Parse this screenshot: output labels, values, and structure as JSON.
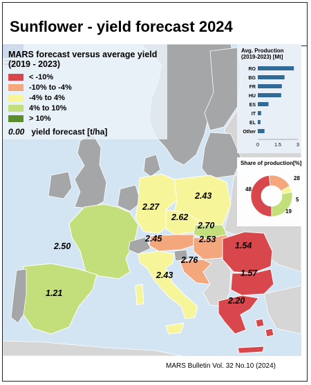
{
  "title": "Sunflower - yield forecast 2024",
  "legend": {
    "title_line1": "MARS forecast versus average yield",
    "title_line2": "(2019 - 2023)",
    "items": [
      {
        "label": "< -10%",
        "color": "#d8474b"
      },
      {
        "label": "-10% to -4%",
        "color": "#f4a67c"
      },
      {
        "label": "-4% to 4%",
        "color": "#f7f59a"
      },
      {
        "label": "4% to 10%",
        "color": "#c3df7b"
      },
      {
        "label": "> 10%",
        "color": "#5b8d2e"
      }
    ],
    "yield_example": "0.00",
    "yield_text": "yield forecast [t/ha]"
  },
  "production_chart": {
    "title_line1": "Avg. Production",
    "title_line2": "(2019-2023) [Mt]",
    "bar_color": "#2f6a99",
    "categories": [
      "RO",
      "BG",
      "FR",
      "HU",
      "ES",
      "IT",
      "EL",
      "Other"
    ],
    "values": [
      2.7,
      2.0,
      1.8,
      1.75,
      0.8,
      0.25,
      0.2,
      0.5
    ],
    "ticks": [
      "0",
      "1.5",
      "3"
    ],
    "xlim": [
      0,
      3
    ]
  },
  "share_chart": {
    "title": "Share of production[%]",
    "slices": [
      {
        "value": 48,
        "color": "#d8474b"
      },
      {
        "value": 19,
        "color": "#f4a67c"
      },
      {
        "value": 5,
        "color": "#f7f59a"
      },
      {
        "value": 28,
        "color": "#c3df7b"
      }
    ],
    "labels": [
      "48",
      "19",
      "5",
      "28"
    ]
  },
  "map": {
    "colors": {
      "water": "#d3e4f2",
      "nondata": "#a4a6a8",
      "outside": "#d6d6d6",
      "border": "#ffffff"
    },
    "countries": [
      {
        "code": "FR",
        "value": "2.50",
        "class": "4% to 10%"
      },
      {
        "code": "ES",
        "value": "1.21",
        "class": "4% to 10%"
      },
      {
        "code": "DE",
        "value": "2.27",
        "class": "-4% to 4%"
      },
      {
        "code": "PL",
        "value": "2.43",
        "class": "-4% to 4%"
      },
      {
        "code": "CZ",
        "value": "2.62",
        "class": "-4% to 4%"
      },
      {
        "code": "SK",
        "value": "2.70",
        "class": "4% to 10%"
      },
      {
        "code": "AT",
        "value": "2.45",
        "class": "-10% to -4%"
      },
      {
        "code": "HU",
        "value": "2.53",
        "class": "-10% to -4%"
      },
      {
        "code": "HR",
        "value": "2.76",
        "class": "-10% to -4%"
      },
      {
        "code": "IT",
        "value": "2.43",
        "class": "-4% to 4%"
      },
      {
        "code": "RO",
        "value": "1.54",
        "class": "< -10%"
      },
      {
        "code": "BG",
        "value": "1.57",
        "class": "< -10%"
      },
      {
        "code": "EL",
        "value": "2.20",
        "class": "< -10%"
      }
    ]
  },
  "footer": "MARS Bulletin Vol. 32 No.10 (2024)"
}
